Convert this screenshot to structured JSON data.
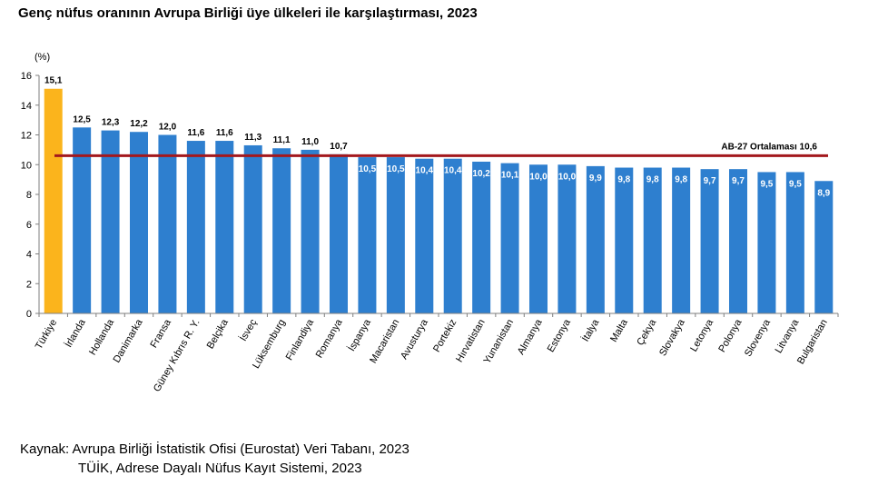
{
  "title": "Genç nüfus oranının Avrupa Birliği üye ülkeleri ile karşılaştırması, 2023",
  "source": {
    "line1": "Kaynak: Avrupa Birliği İstatistik Ofisi (Eurostat) Veri Tabanı, 2023",
    "line2": "TÜİK, Adrese Dayalı Nüfus Kayıt Sistemi, 2023"
  },
  "chart_data": {
    "type": "bar",
    "y_unit_label": "(%)",
    "ylim": [
      0,
      16
    ],
    "yticks": [
      0,
      2,
      4,
      6,
      8,
      10,
      12,
      14,
      16
    ],
    "categories": [
      "Türkiye",
      "İrlanda",
      "Hollanda",
      "Danimarka",
      "Fransa",
      "Güney Kıbrıs R. Y.",
      "Belçika",
      "İsveç",
      "Lüksemburg",
      "Finlandiya",
      "Romanya",
      "İspanya",
      "Macaristan",
      "Avusturya",
      "Portekiz",
      "Hırvatistan",
      "Yunanistan",
      "Almanya",
      "Estonya",
      "İtalya",
      "Malta",
      "Çekya",
      "Slovakya",
      "Letonya",
      "Polonya",
      "Slovenya",
      "Litvanya",
      "Bulgaristan"
    ],
    "values": [
      15.1,
      12.5,
      12.3,
      12.2,
      12.0,
      11.6,
      11.6,
      11.3,
      11.1,
      11.0,
      10.7,
      10.5,
      10.5,
      10.4,
      10.4,
      10.2,
      10.1,
      10.0,
      10.0,
      9.9,
      9.8,
      9.8,
      9.8,
      9.7,
      9.7,
      9.5,
      9.5,
      8.9
    ],
    "value_labels": [
      "15,1",
      "12,5",
      "12,3",
      "12,2",
      "12,0",
      "11,6",
      "11,6",
      "11,3",
      "11,1",
      "11,0",
      "10,7",
      "10,5",
      "10,5",
      "10,4",
      "10,4",
      "10,2",
      "10,1",
      "10,0",
      "10,0",
      "9,9",
      "9,8",
      "9,8",
      "9,8",
      "9,7",
      "9,7",
      "9,5",
      "9,5",
      "8,9"
    ],
    "highlight_category": "Türkiye",
    "reference_line": {
      "label": "AB-27 Ortalaması",
      "value": 10.6,
      "value_label": "10,6"
    },
    "grid": false,
    "colors": {
      "bar": "#2e7fcf",
      "highlight": "#fbb41c",
      "reference": "#a3181d"
    }
  }
}
